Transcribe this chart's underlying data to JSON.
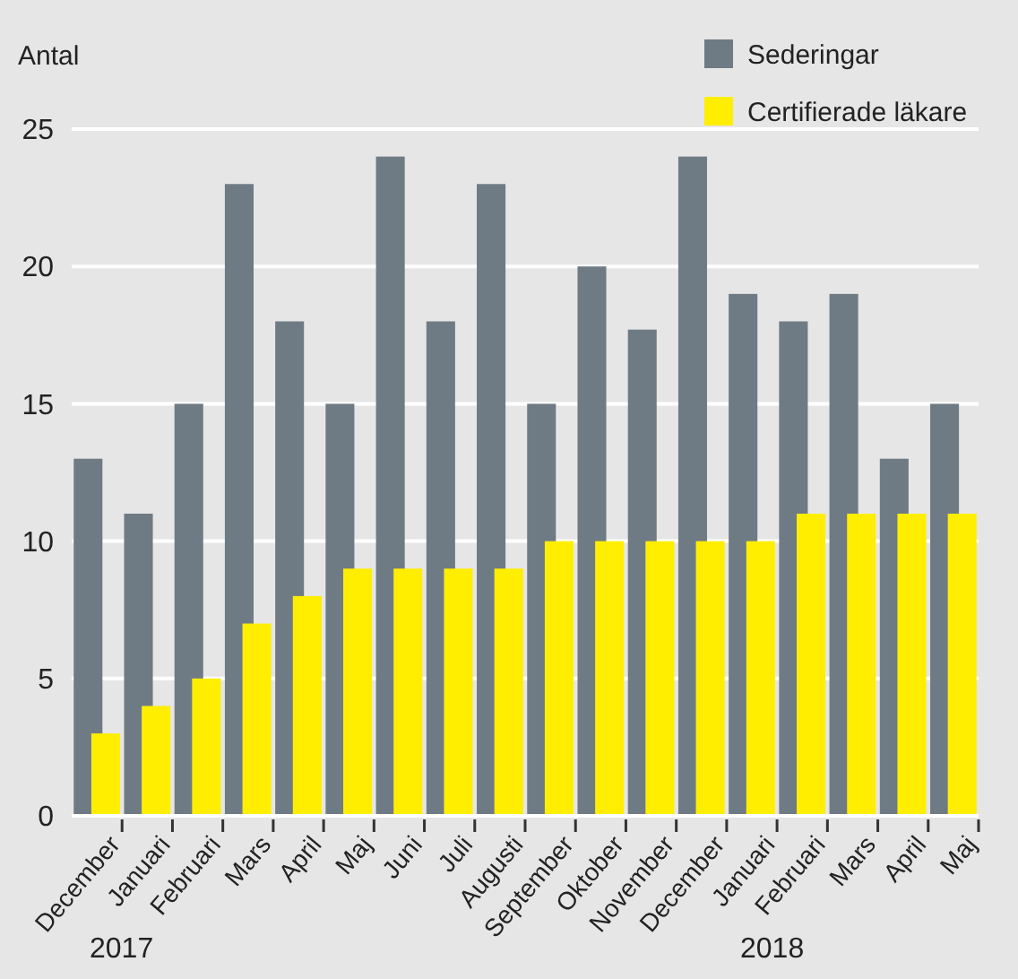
{
  "chart_data": {
    "type": "bar",
    "ylabel": "Antal",
    "categories": [
      "December",
      "Januari",
      "Februari",
      "Mars",
      "April",
      "Maj",
      "Juni",
      "Juli",
      "Augusti",
      "September",
      "Oktober",
      "November",
      "December",
      "Januari",
      "Februari",
      "Mars",
      "April",
      "Maj"
    ],
    "series": [
      {
        "name": "Sederingar",
        "color": "#6f7b84",
        "values": [
          13,
          11,
          15,
          23,
          18,
          15,
          24,
          18,
          23,
          15,
          20,
          17.7,
          24,
          19,
          18,
          19,
          13,
          15
        ]
      },
      {
        "name": "Certifierade läkare",
        "color": "#ffee00",
        "values": [
          3,
          4,
          5,
          7,
          8,
          9,
          9,
          9,
          9,
          10,
          10,
          10,
          10,
          10,
          11,
          11,
          11,
          11
        ]
      }
    ],
    "ylim": [
      0,
      25
    ],
    "yticks": [
      0,
      5,
      10,
      15,
      20,
      25
    ],
    "grid": "y",
    "legend": "top right",
    "annotations": [
      "2017",
      "2018"
    ]
  }
}
